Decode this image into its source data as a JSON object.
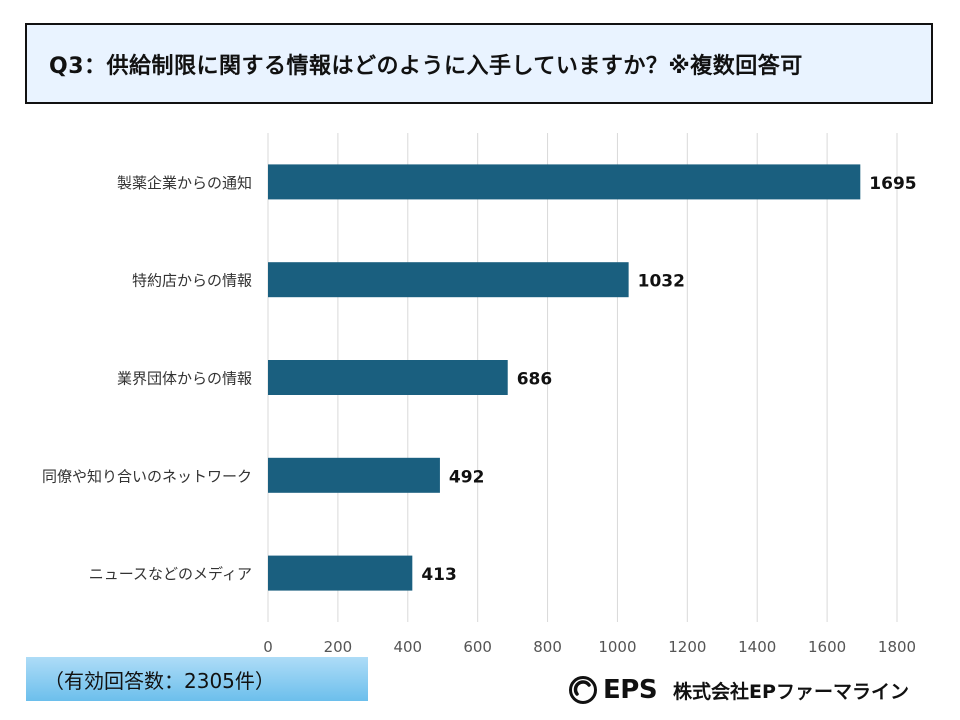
{
  "title": "Q3：供給制限に関する情報はどのように入手していますか？※複数回答可",
  "footnote": "（有効回答数：2305件）",
  "brand": {
    "abbr": "EPS",
    "name": "株式会社EPファーマライン"
  },
  "chart_data": {
    "type": "bar",
    "orientation": "horizontal",
    "title": "Q3：供給制限に関する情報はどのように入手していますか？※複数回答可",
    "categories": [
      "製薬企業からの通知",
      "特約店からの情報",
      "業界団体からの情報",
      "同僚や知り合いのネットワーク",
      "ニュースなどのメディア"
    ],
    "values": [
      1695,
      1032,
      686,
      492,
      413
    ],
    "xlim": [
      0,
      1800
    ],
    "xticks": [
      0,
      200,
      400,
      600,
      800,
      1000,
      1200,
      1400,
      1600,
      1800
    ],
    "xlabel": "",
    "ylabel": "",
    "grid": "vertical",
    "bar_color": "#1a5f7f"
  }
}
